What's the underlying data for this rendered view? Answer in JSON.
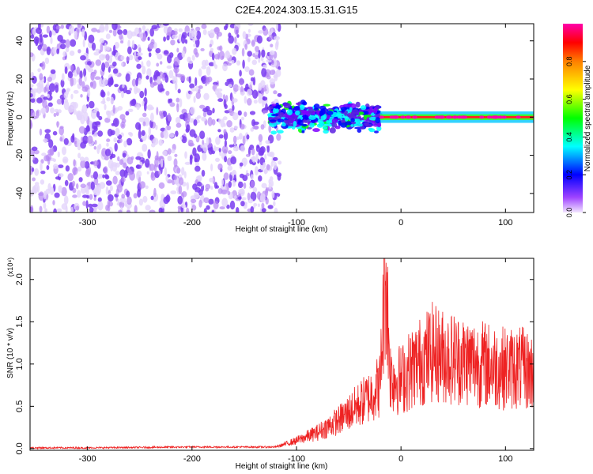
{
  "title": "C2E4.2024.303.15.31.G15",
  "colors": {
    "noise": "#7a3cf0",
    "snr_line": "#ee2222",
    "colormap": [
      "#f2e6ff",
      "#7f00ff",
      "#0000ff",
      "#00ffff",
      "#00ff00",
      "#ffff00",
      "#ff7f00",
      "#ff0000",
      "#ff00aa"
    ]
  },
  "chart_data": [
    {
      "type": "heatmap",
      "xlabel": "Height of straight line (km)",
      "ylabel": "Frequency (Hz)",
      "xlim": [
        -355,
        127
      ],
      "ylim": [
        -50,
        49
      ],
      "xticks": [
        -300,
        -200,
        -100,
        0,
        100
      ],
      "yticks": [
        -40,
        -20,
        0,
        20,
        40
      ],
      "colorbar": {
        "label": "Normalized spectral amplitude",
        "range": [
          0,
          1
        ],
        "ticks": [
          "0.0",
          "0.2",
          "0.4",
          "0.6",
          "0.8"
        ]
      },
      "regions": [
        {
          "x_range": [
            -355,
            -128
          ],
          "frequency_range": [
            -50,
            49
          ],
          "amplitude": 0.05
        },
        {
          "x_range": [
            -125,
            -20
          ],
          "frequency_center": 0,
          "frequency_halfwidth": 6,
          "amplitude": 0.45
        },
        {
          "x_range": [
            -20,
            127
          ],
          "frequency_center": 0,
          "frequency_halfwidth": 3,
          "amplitude": 0.9
        }
      ]
    },
    {
      "type": "line",
      "xlabel": "Height of straight line (km)",
      "ylabel": "SNR (10 * v/v)",
      "yscale_note": "(x10⁴)",
      "xlim": [
        -355,
        127
      ],
      "ylim": [
        -0.02,
        2.25
      ],
      "xticks": [
        -300,
        -200,
        -100,
        0,
        100
      ],
      "yticks": [
        "0.0",
        "0.5",
        "1.0",
        "1.5",
        "2.0"
      ],
      "series": [
        {
          "x": [
            -355,
            -300,
            -200,
            -120,
            -100,
            -80,
            -60,
            -50,
            -40,
            -30,
            -20,
            -15,
            -10,
            0,
            10,
            20,
            30,
            40,
            60,
            80,
            100,
            115,
            127
          ],
          "y": [
            0.01,
            0.01,
            0.02,
            0.02,
            0.1,
            0.2,
            0.35,
            0.45,
            0.55,
            0.65,
            0.8,
            2.22,
            0.9,
            0.85,
            1.0,
            1.1,
            1.2,
            1.15,
            1.1,
            1.05,
            1.0,
            1.0,
            0.95
          ]
        }
      ]
    }
  ]
}
